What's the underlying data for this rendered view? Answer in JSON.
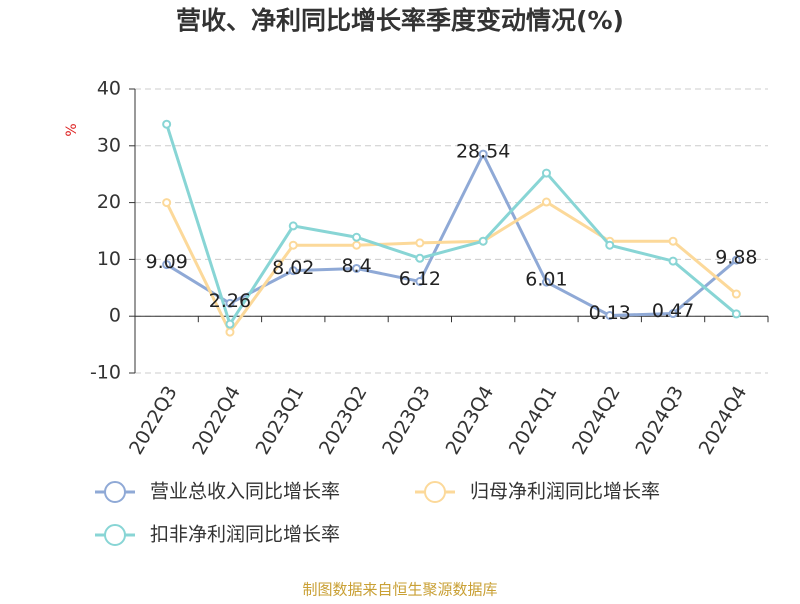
{
  "chart_data": {
    "type": "line",
    "title": "营收、净利同比增长率季度变动情况(%)",
    "y_label": "%",
    "footer": "制图数据来自恒生聚源数据库",
    "categories": [
      "2022Q3",
      "2022Q4",
      "2023Q1",
      "2023Q2",
      "2023Q3",
      "2023Q4",
      "2024Q1",
      "2024Q2",
      "2024Q3",
      "2024Q4"
    ],
    "series": [
      {
        "name": "营业总收入同比增长率",
        "color": "#8fa9d6",
        "values": [
          9.09,
          2.26,
          8.02,
          8.4,
          6.12,
          28.54,
          6.01,
          0.13,
          0.47,
          9.88
        ],
        "show_labels": true
      },
      {
        "name": "归母净利润同比增长率",
        "color": "#fcd99a",
        "values": [
          20,
          -2.8,
          12.5,
          12.5,
          12.9,
          13.2,
          20.1,
          13.2,
          13.2,
          3.9
        ],
        "show_labels": false
      },
      {
        "name": "扣非净利润同比增长率",
        "color": "#88d5d5",
        "values": [
          33.8,
          -1.4,
          15.9,
          13.9,
          10.2,
          13.2,
          25.2,
          12.5,
          9.7,
          0.4
        ],
        "show_labels": false
      }
    ],
    "ylim": [
      -10,
      40
    ],
    "yticks": [
      -10,
      0,
      10,
      20,
      30,
      40
    ],
    "grid": true
  }
}
